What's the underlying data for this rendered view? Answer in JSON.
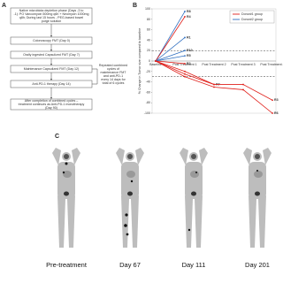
{
  "panels": {
    "a": {
      "label": "A",
      "steps": [
        "Native microbiota depletion phase (Days -3 to -1): PO Vancomycin 500mg q6h + Neomycin 1000mg q8h; During last 15 hours - PEG-based bowel purge solution",
        "Colonoscopy FMT (Day 0)",
        "Orally ingested Capsulized FMT (Day 7)",
        "Maintenance Capsulized FMT (Day 12)",
        "Anti-PD-1 therapy (Day 14)",
        "After completion of combined cycles – treatment continues as Anti-PD-1 monotherapy (Day 90)"
      ],
      "side_note": "Repeated combined cycles of maintenance FMT and anti-PD-1 every 14 days for total of 6 cycles"
    },
    "c": {
      "label": "C",
      "images": [
        "Pre-treatment",
        "Day 67",
        "Day 111",
        "Day 201"
      ]
    }
  },
  "chart_data": {
    "type": "line",
    "panel_label": "B",
    "y_label": "% Change in Tumor size compared to baseline",
    "categories": [
      "Baseline",
      "Post Treatment 1",
      "Post Treatment 2",
      "Post Treatment 3",
      "Post Treatment 4"
    ],
    "ylim": [
      -100,
      100
    ],
    "yticks": [
      100,
      80,
      60,
      40,
      20,
      0,
      -20,
      -40,
      -60,
      -80,
      -100
    ],
    "reference_lines": [
      20,
      -30
    ],
    "legend": [
      {
        "name": "Donor#1 group",
        "color": "#e0201b"
      },
      {
        "name": "Donor#2 group",
        "color": "#2f6fc0"
      }
    ],
    "legend_location": "upper right",
    "series": [
      {
        "name": "R8",
        "color": "#2f6fc0",
        "values": [
          0,
          95,
          null,
          null,
          null
        ]
      },
      {
        "name": "R4",
        "color": "#e0201b",
        "values": [
          0,
          85,
          null,
          null,
          null
        ]
      },
      {
        "name": "R1",
        "color": "#2f6fc0",
        "values": [
          0,
          45,
          null,
          null,
          null
        ]
      },
      {
        "name": "R10",
        "color": "#2f6fc0",
        "values": [
          0,
          20,
          null,
          null,
          null
        ]
      },
      {
        "name": "R5",
        "color": "#2f6fc0",
        "values": [
          0,
          10,
          null,
          null,
          null
        ]
      },
      {
        "name": "R2",
        "color": "#e0201b",
        "values": [
          0,
          -5,
          null,
          null,
          null
        ]
      },
      {
        "name": "R7",
        "color": "#e0201b",
        "values": [
          0,
          -20,
          -45,
          null,
          null
        ]
      },
      {
        "name": "R3",
        "color": "#e0201b",
        "values": [
          0,
          -25,
          -45,
          -45,
          -75
        ]
      },
      {
        "name": "R6",
        "color": "#e0201b",
        "values": [
          0,
          -30,
          -50,
          -55,
          -100
        ]
      }
    ]
  }
}
